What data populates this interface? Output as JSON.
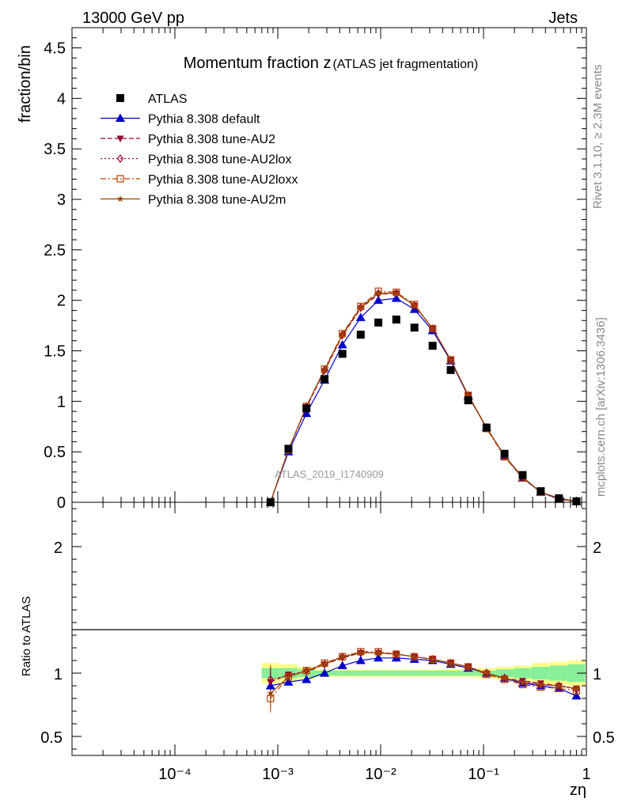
{
  "header": {
    "energy_label": "13000 GeV pp",
    "category_label": "Jets"
  },
  "side_labels": {
    "rivet": "Rivet 3.1.10, ≥ 2.3M events",
    "mcplots": "mcplots.cern.ch [arXiv:1306.3436]"
  },
  "chart_data": [
    {
      "type": "line",
      "title_main": "Momentum fraction z",
      "title_sub": "(ATLAS jet fragmentation)",
      "ylabel": "fraction/bin",
      "watermark": "ATLAS_2019_I1740909",
      "xscale": "log",
      "xlim": [
        1e-05,
        1
      ],
      "ylim": [
        0,
        4.7
      ],
      "yticks": [
        "0",
        "0.5",
        "1",
        "1.5",
        "2",
        "2.5",
        "3",
        "3.5",
        "4",
        "4.5"
      ],
      "legend_position": "top-left",
      "x": [
        0.00085,
        0.00127,
        0.0019,
        0.00285,
        0.00425,
        0.0064,
        0.0095,
        0.0142,
        0.0213,
        0.032,
        0.048,
        0.071,
        0.107,
        0.16,
        0.24,
        0.36,
        0.54,
        0.8
      ],
      "series": [
        {
          "name": "ATLAS",
          "color": "#000000",
          "marker": "square",
          "style": "points",
          "values": [
            0.0,
            0.53,
            0.93,
            1.22,
            1.47,
            1.66,
            1.78,
            1.81,
            1.73,
            1.55,
            1.31,
            1.01,
            0.74,
            0.48,
            0.27,
            0.11,
            0.04,
            0.01
          ]
        },
        {
          "name": "Pythia 8.308 default",
          "color": "#0000cc",
          "marker": "triangle-up",
          "style": "solid",
          "values": [
            0.0,
            0.5,
            0.88,
            1.21,
            1.56,
            1.83,
            2.0,
            2.02,
            1.91,
            1.7,
            1.4,
            1.05,
            0.74,
            0.46,
            0.24,
            0.1,
            0.03,
            0.01
          ]
        },
        {
          "name": "Pythia 8.308 tune-AU2",
          "color": "#990033",
          "marker": "triangle-down",
          "style": "dash",
          "values": [
            0.0,
            0.52,
            0.94,
            1.3,
            1.65,
            1.92,
            2.06,
            2.07,
            1.95,
            1.72,
            1.41,
            1.06,
            0.74,
            0.46,
            0.25,
            0.1,
            0.04,
            0.01
          ]
        },
        {
          "name": "Pythia 8.308 tune-AU2lox",
          "color": "#990033",
          "marker": "diamond-open",
          "style": "dot",
          "values": [
            0.0,
            0.52,
            0.95,
            1.31,
            1.66,
            1.93,
            2.07,
            2.07,
            1.95,
            1.72,
            1.41,
            1.06,
            0.74,
            0.46,
            0.25,
            0.1,
            0.04,
            0.01
          ]
        },
        {
          "name": "Pythia 8.308 tune-AU2loxx",
          "color": "#bb4400",
          "marker": "square-open",
          "style": "dashdot",
          "values": [
            0.0,
            0.52,
            0.95,
            1.32,
            1.67,
            1.94,
            2.09,
            2.08,
            1.96,
            1.72,
            1.41,
            1.06,
            0.73,
            0.45,
            0.24,
            0.1,
            0.03,
            0.01
          ]
        },
        {
          "name": "Pythia 8.308 tune-AU2m",
          "color": "#994400",
          "marker": "star",
          "style": "solid",
          "values": [
            0.0,
            0.52,
            0.95,
            1.31,
            1.66,
            1.93,
            2.07,
            2.07,
            1.95,
            1.72,
            1.41,
            1.06,
            0.74,
            0.46,
            0.25,
            0.1,
            0.04,
            0.01
          ]
        }
      ]
    },
    {
      "type": "line",
      "ylabel": "Ratio to ATLAS",
      "xlabel": "zη",
      "xscale": "log",
      "xlim": [
        1e-05,
        1
      ],
      "ylim": [
        0.35,
        2.35
      ],
      "yticks": [
        "0.5",
        "1",
        "2"
      ],
      "xticks": [
        "10⁻⁴",
        "10⁻³",
        "10⁻²",
        "10⁻¹",
        "1"
      ],
      "reference_line": 1,
      "uncertainty_band_inner": [
        0.04,
        0.04,
        0.03,
        0.02,
        0.02,
        0.02,
        0.02,
        0.02,
        0.02,
        0.02,
        0.02,
        0.02,
        0.02,
        0.03,
        0.04,
        0.05,
        0.06,
        0.07
      ],
      "uncertainty_band_outer": [
        0.08,
        0.07,
        0.05,
        0.03,
        0.03,
        0.03,
        0.03,
        0.03,
        0.03,
        0.03,
        0.03,
        0.03,
        0.04,
        0.05,
        0.06,
        0.08,
        0.09,
        0.1
      ],
      "x": [
        0.00085,
        0.00127,
        0.0019,
        0.00285,
        0.00425,
        0.0064,
        0.0095,
        0.0142,
        0.0213,
        0.032,
        0.048,
        0.071,
        0.107,
        0.16,
        0.24,
        0.36,
        0.54,
        0.8
      ],
      "series": [
        {
          "name": "Pythia 8.308 default",
          "color": "#0000cc",
          "marker": "triangle-up",
          "style": "solid",
          "values": [
            0.9,
            0.93,
            0.95,
            1.0,
            1.06,
            1.1,
            1.12,
            1.12,
            1.11,
            1.1,
            1.07,
            1.04,
            1.0,
            0.96,
            0.92,
            0.9,
            0.88,
            0.82
          ]
        },
        {
          "name": "Pythia 8.308 tune-AU2",
          "color": "#990033",
          "marker": "triangle-down",
          "style": "dash",
          "values": [
            0.93,
            0.99,
            1.01,
            1.07,
            1.12,
            1.16,
            1.16,
            1.15,
            1.13,
            1.11,
            1.08,
            1.05,
            1.0,
            0.96,
            0.94,
            0.92,
            0.9,
            0.88
          ]
        },
        {
          "name": "Pythia 8.308 tune-AU2lox",
          "color": "#990033",
          "marker": "diamond-open",
          "style": "dot",
          "values": [
            0.95,
            0.98,
            1.02,
            1.07,
            1.13,
            1.16,
            1.16,
            1.15,
            1.13,
            1.11,
            1.08,
            1.05,
            1.0,
            0.96,
            0.93,
            0.91,
            0.9,
            0.87
          ]
        },
        {
          "name": "Pythia 8.308 tune-AU2loxx",
          "color": "#bb4400",
          "marker": "square-open",
          "style": "dashdot",
          "values": [
            0.8,
            0.97,
            1.02,
            1.08,
            1.13,
            1.17,
            1.17,
            1.15,
            1.13,
            1.11,
            1.08,
            1.05,
            0.99,
            0.95,
            0.91,
            0.89,
            0.88,
            0.86
          ]
        },
        {
          "name": "Pythia 8.308 tune-AU2m",
          "color": "#994400",
          "marker": "star",
          "style": "solid",
          "values": [
            0.84,
            0.97,
            1.02,
            1.07,
            1.13,
            1.16,
            1.16,
            1.15,
            1.13,
            1.11,
            1.08,
            1.05,
            1.0,
            0.96,
            0.93,
            0.91,
            0.9,
            0.88
          ]
        }
      ]
    }
  ]
}
